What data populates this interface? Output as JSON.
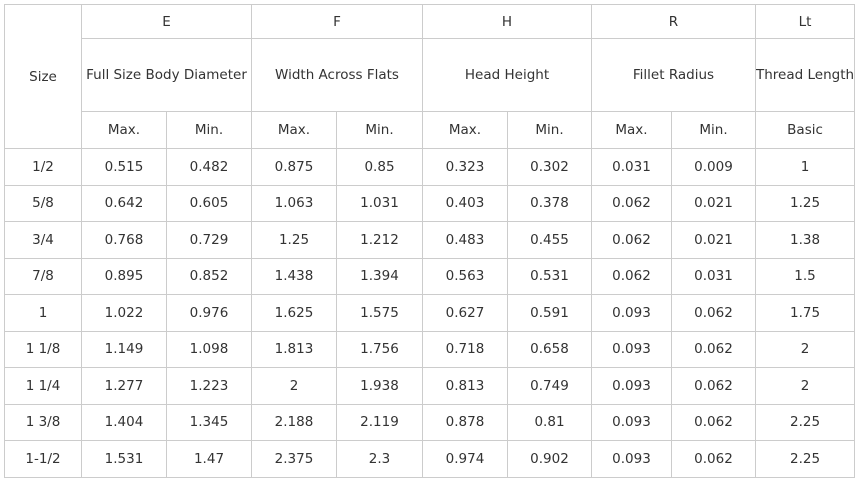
{
  "table": {
    "size_header": "Size",
    "groups": [
      {
        "code": "E",
        "name": "Full Size Body Diameter",
        "sub": [
          "Max.",
          "Min."
        ]
      },
      {
        "code": "F",
        "name": "Width Across Flats",
        "sub": [
          "Max.",
          "Min."
        ]
      },
      {
        "code": "H",
        "name": "Head Height",
        "sub": [
          "Max.",
          "Min."
        ]
      },
      {
        "code": "R",
        "name": "Fillet Radius",
        "sub": [
          "Max.",
          "Min."
        ]
      },
      {
        "code": "Lt",
        "name": "Thread Length",
        "sub": [
          "Basic"
        ]
      }
    ],
    "rows": [
      [
        "1/2",
        "0.515",
        "0.482",
        "0.875",
        "0.85",
        "0.323",
        "0.302",
        "0.031",
        "0.009",
        "1"
      ],
      [
        "5/8",
        "0.642",
        "0.605",
        "1.063",
        "1.031",
        "0.403",
        "0.378",
        "0.062",
        "0.021",
        "1.25"
      ],
      [
        "3/4",
        "0.768",
        "0.729",
        "1.25",
        "1.212",
        "0.483",
        "0.455",
        "0.062",
        "0.021",
        "1.38"
      ],
      [
        "7/8",
        "0.895",
        "0.852",
        "1.438",
        "1.394",
        "0.563",
        "0.531",
        "0.062",
        "0.031",
        "1.5"
      ],
      [
        "1",
        "1.022",
        "0.976",
        "1.625",
        "1.575",
        "0.627",
        "0.591",
        "0.093",
        "0.062",
        "1.75"
      ],
      [
        "1 1/8",
        "1.149",
        "1.098",
        "1.813",
        "1.756",
        "0.718",
        "0.658",
        "0.093",
        "0.062",
        "2"
      ],
      [
        "1 1/4",
        "1.277",
        "1.223",
        "2",
        "1.938",
        "0.813",
        "0.749",
        "0.093",
        "0.062",
        "2"
      ],
      [
        "1 3/8",
        "1.404",
        "1.345",
        "2.188",
        "2.119",
        "0.878",
        "0.81",
        "0.093",
        "0.062",
        "2.25"
      ],
      [
        "1-1/2",
        "1.531",
        "1.47",
        "2.375",
        "2.3",
        "0.974",
        "0.902",
        "0.093",
        "0.062",
        "2.25"
      ]
    ]
  }
}
